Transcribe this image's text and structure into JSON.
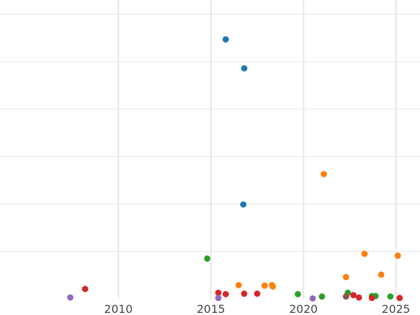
{
  "chart_data": {
    "type": "scatter",
    "title": "",
    "xlabel": "",
    "ylabel": "",
    "xlim": [
      2003.6,
      2026.3
    ],
    "ylim": [
      0,
      63
    ],
    "x_ticks": [
      2010,
      2015,
      2020,
      2025
    ],
    "x_tick_labels": [
      "2010",
      "2015",
      "2020",
      "2025"
    ],
    "y_gridlines": [
      10,
      20,
      30,
      40,
      50,
      60
    ],
    "grid": true,
    "legend": "none",
    "series": [
      {
        "color": "#1f77b4",
        "points": [
          {
            "x": 2015.8,
            "y": 54.7
          },
          {
            "x": 2016.8,
            "y": 48.6
          },
          {
            "x": 2016.75,
            "y": 19.9
          }
        ]
      },
      {
        "color": "#ff7f0e",
        "points": [
          {
            "x": 2021.1,
            "y": 26.3
          },
          {
            "x": 2023.3,
            "y": 9.5
          },
          {
            "x": 2025.1,
            "y": 9.1
          },
          {
            "x": 2024.2,
            "y": 5.1
          },
          {
            "x": 2022.3,
            "y": 4.6
          },
          {
            "x": 2016.5,
            "y": 2.9
          },
          {
            "x": 2017.9,
            "y": 2.8
          },
          {
            "x": 2018.3,
            "y": 2.9
          },
          {
            "x": 2018.35,
            "y": 2.6
          }
        ]
      },
      {
        "color": "#2ca02c",
        "points": [
          {
            "x": 2014.8,
            "y": 8.5
          },
          {
            "x": 2019.7,
            "y": 1.0
          },
          {
            "x": 2021.0,
            "y": 0.5
          },
          {
            "x": 2022.4,
            "y": 1.3
          },
          {
            "x": 2023.7,
            "y": 0.6
          },
          {
            "x": 2023.9,
            "y": 0.6
          },
          {
            "x": 2024.7,
            "y": 0.5
          }
        ]
      },
      {
        "color": "#d62728",
        "points": [
          {
            "x": 2008.2,
            "y": 2.1
          },
          {
            "x": 2015.4,
            "y": 1.3
          },
          {
            "x": 2015.8,
            "y": 1.0
          },
          {
            "x": 2016.8,
            "y": 1.1
          },
          {
            "x": 2017.5,
            "y": 1.1
          },
          {
            "x": 2022.7,
            "y": 0.8
          },
          {
            "x": 2023.0,
            "y": 0.3
          },
          {
            "x": 2023.7,
            "y": 0.2
          },
          {
            "x": 2025.2,
            "y": 0.2
          }
        ]
      },
      {
        "color": "#9467bd",
        "points": [
          {
            "x": 2007.4,
            "y": 0.3
          },
          {
            "x": 2015.4,
            "y": 0.2
          },
          {
            "x": 2020.5,
            "y": 0.1
          }
        ]
      },
      {
        "color": "#8c564b",
        "points": [
          {
            "x": 2022.3,
            "y": 0.5
          }
        ]
      }
    ]
  }
}
